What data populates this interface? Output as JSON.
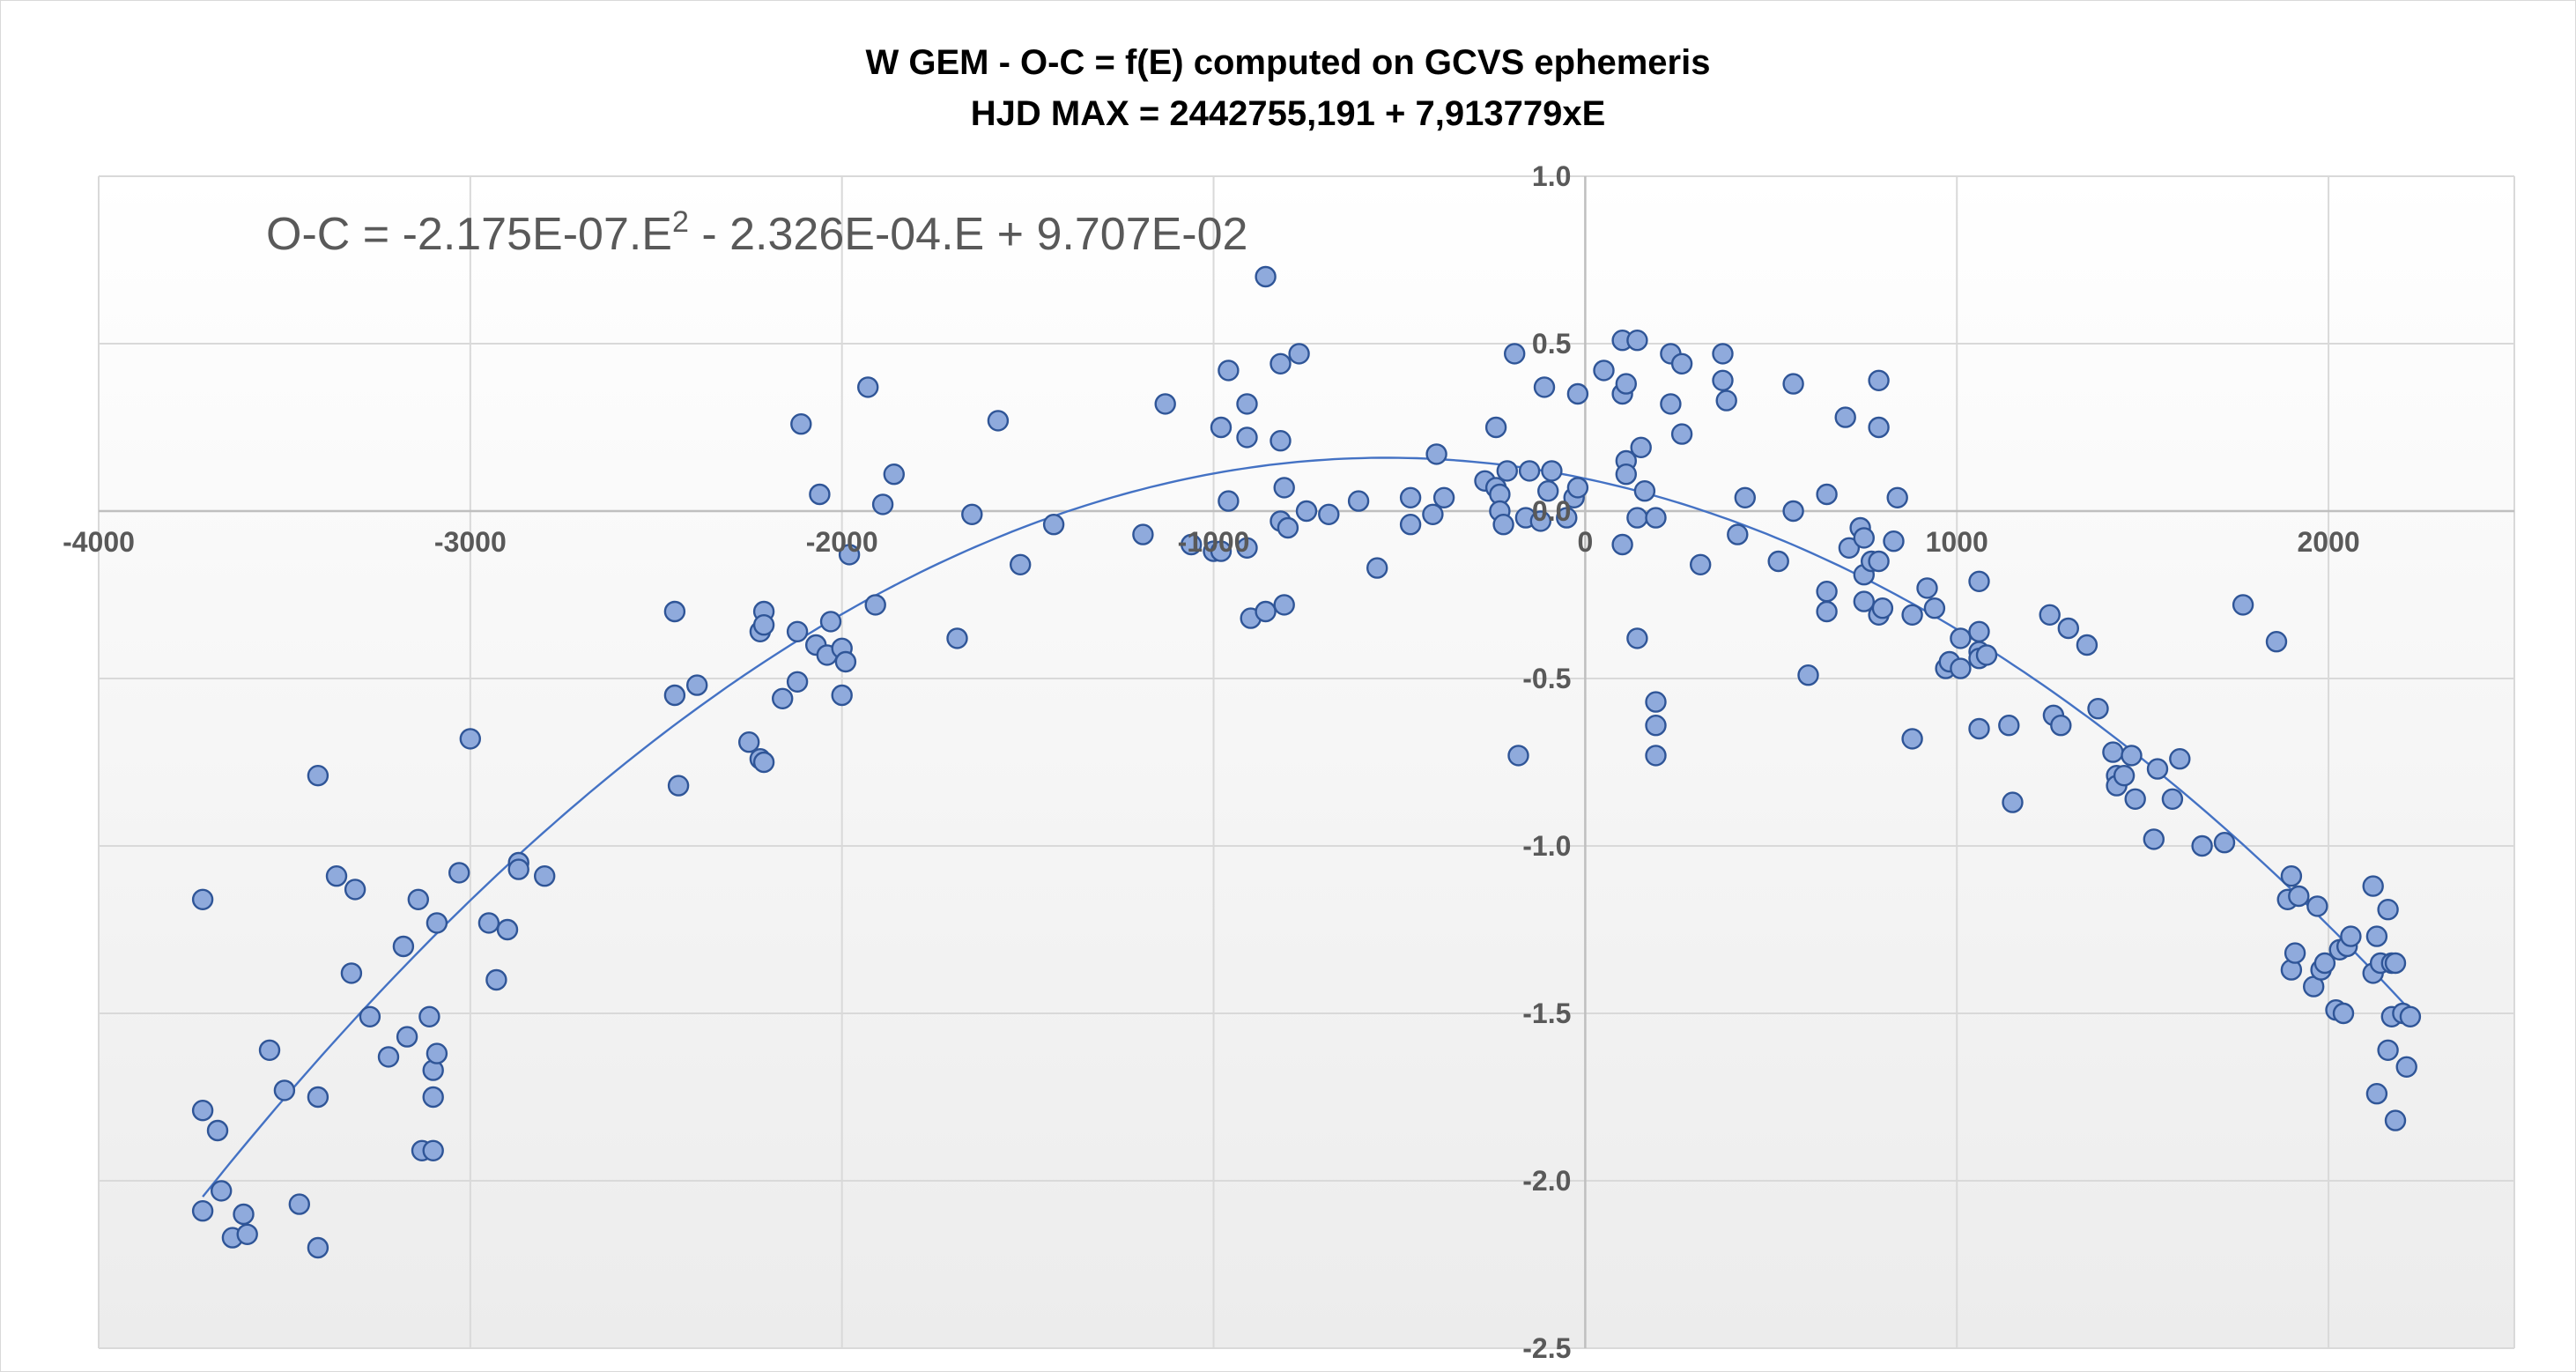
{
  "chart_data": {
    "type": "scatter",
    "title_line1": "W GEM - O-C = f(E) computed on GCVS ephemeris",
    "title_line2": "HJD MAX = 2442755,191 + 7,913779xE",
    "equation": {
      "prefix": "O-C = -2.175E-07.E",
      "exponent": "2",
      "suffix": " - 2.326E-04.E + 9.707E-02"
    },
    "xlim": [
      -4000,
      2500
    ],
    "ylim": [
      -2.5,
      1.0
    ],
    "x_ticks": [
      {
        "value": -4000,
        "label": "-4000"
      },
      {
        "value": -3000,
        "label": "-3000"
      },
      {
        "value": -2000,
        "label": "-2000"
      },
      {
        "value": -1000,
        "label": "-1000"
      },
      {
        "value": 0,
        "label": "0"
      },
      {
        "value": 1000,
        "label": "1000"
      },
      {
        "value": 2000,
        "label": "2000"
      }
    ],
    "y_ticks": [
      {
        "value": 1.0,
        "label": "1.0"
      },
      {
        "value": 0.5,
        "label": "0.5"
      },
      {
        "value": 0.0,
        "label": "0.0"
      },
      {
        "value": -0.5,
        "label": "-0.5"
      },
      {
        "value": -1.0,
        "label": "-1.0"
      },
      {
        "value": -1.5,
        "label": "-1.5"
      },
      {
        "value": -2.0,
        "label": "-2.0"
      },
      {
        "value": -2.5,
        "label": "-2.5"
      }
    ],
    "grid": true,
    "trendline": {
      "type": "polynomial",
      "a": -2.175e-07,
      "b": -0.0002326,
      "c": 0.09707,
      "x_range": [
        -3720,
        2220
      ]
    },
    "colors": {
      "marker_fill": "#8faadc",
      "marker_edge": "#2f5597",
      "trendline": "#4472c4",
      "grid": "#d9d9d9",
      "axis": "#bfbfbf"
    },
    "series": [
      {
        "points": [
          [
            -3720,
            -1.16
          ],
          [
            -3720,
            -1.79
          ],
          [
            -3720,
            -2.09
          ],
          [
            -3680,
            -1.85
          ],
          [
            -3670,
            -2.03
          ],
          [
            -3640,
            -2.17
          ],
          [
            -3610,
            -2.1
          ],
          [
            -3600,
            -2.16
          ],
          [
            -3540,
            -1.61
          ],
          [
            -3500,
            -1.73
          ],
          [
            -3460,
            -2.07
          ],
          [
            -3410,
            -0.79
          ],
          [
            -3410,
            -1.75
          ],
          [
            -3410,
            -2.2
          ],
          [
            -3360,
            -1.09
          ],
          [
            -3320,
            -1.38
          ],
          [
            -3310,
            -1.13
          ],
          [
            -3270,
            -1.51
          ],
          [
            -3220,
            -1.63
          ],
          [
            -3180,
            -1.3
          ],
          [
            -3170,
            -1.57
          ],
          [
            -3140,
            -1.16
          ],
          [
            -3130,
            -1.91
          ],
          [
            -3110,
            -1.51
          ],
          [
            -3100,
            -1.67
          ],
          [
            -3100,
            -1.75
          ],
          [
            -3100,
            -1.91
          ],
          [
            -3090,
            -1.23
          ],
          [
            -3090,
            -1.62
          ],
          [
            -3030,
            -1.08
          ],
          [
            -3000,
            -0.68
          ],
          [
            -2950,
            -1.23
          ],
          [
            -2930,
            -1.4
          ],
          [
            -2900,
            -1.25
          ],
          [
            -2870,
            -1.05
          ],
          [
            -2870,
            -1.07
          ],
          [
            -2800,
            -1.09
          ],
          [
            -2450,
            -0.3
          ],
          [
            -2450,
            -0.55
          ],
          [
            -2440,
            -0.82
          ],
          [
            -2390,
            -0.52
          ],
          [
            -2250,
            -0.69
          ],
          [
            -2220,
            -0.36
          ],
          [
            -2220,
            -0.74
          ],
          [
            -2210,
            -0.3
          ],
          [
            -2210,
            -0.34
          ],
          [
            -2210,
            -0.75
          ],
          [
            -2160,
            -0.56
          ],
          [
            -2120,
            -0.36
          ],
          [
            -2120,
            -0.51
          ],
          [
            -2110,
            0.26
          ],
          [
            -2070,
            -0.4
          ],
          [
            -2060,
            0.05
          ],
          [
            -2040,
            -0.43
          ],
          [
            -2030,
            -0.33
          ],
          [
            -2000,
            -0.41
          ],
          [
            -2000,
            -0.55
          ],
          [
            -1990,
            -0.45
          ],
          [
            -1980,
            -0.13
          ],
          [
            -1930,
            0.37
          ],
          [
            -1910,
            -0.28
          ],
          [
            -1890,
            0.02
          ],
          [
            -1860,
            0.11
          ],
          [
            -1690,
            -0.38
          ],
          [
            -1650,
            -0.01
          ],
          [
            -1580,
            0.27
          ],
          [
            -1520,
            -0.16
          ],
          [
            -1430,
            -0.04
          ],
          [
            -1190,
            -0.07
          ],
          [
            -1130,
            0.32
          ],
          [
            -1060,
            -0.1
          ],
          [
            -1000,
            -0.12
          ],
          [
            -980,
            -0.12
          ],
          [
            -980,
            0.25
          ],
          [
            -960,
            0.42
          ],
          [
            -960,
            0.03
          ],
          [
            -910,
            0.32
          ],
          [
            -910,
            0.22
          ],
          [
            -910,
            -0.11
          ],
          [
            -900,
            -0.32
          ],
          [
            -860,
            0.7
          ],
          [
            -860,
            -0.3
          ],
          [
            -820,
            0.44
          ],
          [
            -820,
            0.21
          ],
          [
            -820,
            -0.03
          ],
          [
            -810,
            0.07
          ],
          [
            -810,
            -0.28
          ],
          [
            -800,
            -0.05
          ],
          [
            -770,
            0.47
          ],
          [
            -750,
            0.0
          ],
          [
            -690,
            -0.01
          ],
          [
            -610,
            0.03
          ],
          [
            -560,
            -0.17
          ],
          [
            -470,
            -0.04
          ],
          [
            -470,
            0.04
          ],
          [
            -410,
            -0.01
          ],
          [
            -400,
            0.17
          ],
          [
            -380,
            0.04
          ],
          [
            -270,
            0.09
          ],
          [
            -240,
            0.25
          ],
          [
            -240,
            0.07
          ],
          [
            -230,
            0.05
          ],
          [
            -230,
            0.0
          ],
          [
            -220,
            -0.04
          ],
          [
            -210,
            0.12
          ],
          [
            -190,
            0.47
          ],
          [
            -180,
            -0.73
          ],
          [
            -160,
            -0.02
          ],
          [
            -150,
            0.12
          ],
          [
            -120,
            -0.03
          ],
          [
            -110,
            0.37
          ],
          [
            -100,
            0.06
          ],
          [
            -90,
            0.12
          ],
          [
            -50,
            -0.02
          ],
          [
            -30,
            0.04
          ],
          [
            -20,
            0.35
          ],
          [
            -20,
            0.07
          ],
          [
            50,
            0.42
          ],
          [
            100,
            0.51
          ],
          [
            100,
            0.35
          ],
          [
            100,
            -0.1
          ],
          [
            110,
            0.38
          ],
          [
            110,
            0.15
          ],
          [
            110,
            0.11
          ],
          [
            140,
            0.51
          ],
          [
            140,
            -0.38
          ],
          [
            140,
            -0.02
          ],
          [
            150,
            0.19
          ],
          [
            160,
            0.06
          ],
          [
            190,
            -0.57
          ],
          [
            190,
            -0.64
          ],
          [
            190,
            -0.73
          ],
          [
            190,
            -0.02
          ],
          [
            230,
            0.47
          ],
          [
            230,
            0.32
          ],
          [
            260,
            0.44
          ],
          [
            260,
            0.23
          ],
          [
            310,
            -0.16
          ],
          [
            370,
            0.47
          ],
          [
            370,
            0.39
          ],
          [
            380,
            0.33
          ],
          [
            410,
            -0.07
          ],
          [
            430,
            0.04
          ],
          [
            520,
            -0.15
          ],
          [
            560,
            0.38
          ],
          [
            560,
            0.0
          ],
          [
            600,
            -0.49
          ],
          [
            650,
            0.05
          ],
          [
            650,
            -0.24
          ],
          [
            650,
            -0.3
          ],
          [
            700,
            0.28
          ],
          [
            710,
            -0.11
          ],
          [
            740,
            -0.05
          ],
          [
            750,
            -0.08
          ],
          [
            750,
            -0.19
          ],
          [
            750,
            -0.27
          ],
          [
            770,
            -0.15
          ],
          [
            790,
            0.39
          ],
          [
            790,
            0.25
          ],
          [
            790,
            -0.15
          ],
          [
            790,
            -0.31
          ],
          [
            800,
            -0.29
          ],
          [
            830,
            -0.09
          ],
          [
            840,
            0.04
          ],
          [
            880,
            -0.68
          ],
          [
            880,
            -0.31
          ],
          [
            920,
            -0.23
          ],
          [
            940,
            -0.29
          ],
          [
            970,
            -0.47
          ],
          [
            980,
            -0.45
          ],
          [
            1010,
            -0.38
          ],
          [
            1010,
            -0.47
          ],
          [
            1060,
            -0.21
          ],
          [
            1060,
            -0.36
          ],
          [
            1060,
            -0.42
          ],
          [
            1060,
            -0.44
          ],
          [
            1060,
            -0.65
          ],
          [
            1080,
            -0.43
          ],
          [
            1140,
            -0.64
          ],
          [
            1150,
            -0.87
          ],
          [
            1250,
            -0.31
          ],
          [
            1260,
            -0.61
          ],
          [
            1280,
            -0.64
          ],
          [
            1300,
            -0.35
          ],
          [
            1350,
            -0.4
          ],
          [
            1380,
            -0.59
          ],
          [
            1420,
            -0.72
          ],
          [
            1430,
            -0.79
          ],
          [
            1430,
            -0.82
          ],
          [
            1450,
            -0.79
          ],
          [
            1470,
            -0.73
          ],
          [
            1480,
            -0.86
          ],
          [
            1530,
            -0.98
          ],
          [
            1540,
            -0.77
          ],
          [
            1580,
            -0.86
          ],
          [
            1600,
            -0.74
          ],
          [
            1660,
            -1.0
          ],
          [
            1720,
            -0.99
          ],
          [
            1770,
            -0.28
          ],
          [
            1860,
            -0.39
          ],
          [
            1890,
            -1.16
          ],
          [
            1900,
            -1.09
          ],
          [
            1900,
            -1.37
          ],
          [
            1910,
            -1.32
          ],
          [
            1920,
            -1.15
          ],
          [
            1960,
            -1.42
          ],
          [
            1970,
            -1.18
          ],
          [
            1980,
            -1.37
          ],
          [
            1990,
            -1.35
          ],
          [
            2020,
            -1.49
          ],
          [
            2030,
            -1.31
          ],
          [
            2040,
            -1.5
          ],
          [
            2050,
            -1.3
          ],
          [
            2060,
            -1.27
          ],
          [
            2120,
            -1.12
          ],
          [
            2120,
            -1.38
          ],
          [
            2130,
            -1.27
          ],
          [
            2130,
            -1.74
          ],
          [
            2140,
            -1.35
          ],
          [
            2160,
            -1.19
          ],
          [
            2160,
            -1.61
          ],
          [
            2170,
            -1.35
          ],
          [
            2170,
            -1.51
          ],
          [
            2180,
            -1.35
          ],
          [
            2180,
            -1.82
          ],
          [
            2200,
            -1.5
          ],
          [
            2210,
            -1.66
          ],
          [
            2220,
            -1.51
          ]
        ]
      }
    ]
  }
}
